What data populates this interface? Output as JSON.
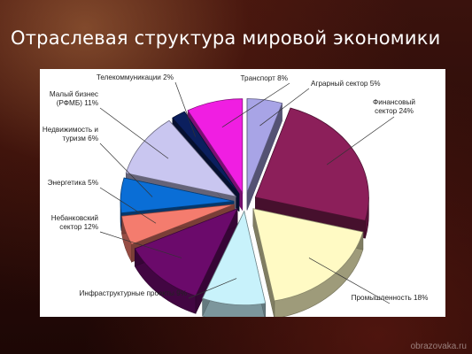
{
  "slide": {
    "title": "Отраслевая структура мировой экономики",
    "watermark": "obrazovaka.ru"
  },
  "chart_data": {
    "type": "pie",
    "title": "",
    "exploded": true,
    "three_d": true,
    "slices": [
      {
        "label": "Аграрный сектор 5%",
        "value": 5,
        "color": "#a8a4e6"
      },
      {
        "label": "Финансовый сектор 24%",
        "value": 24,
        "color": "#8c1f5a"
      },
      {
        "label": "Промышленность 18%",
        "value": 18,
        "color": "#fffac4"
      },
      {
        "label": "Инфраструктурные проекты 9%",
        "value": 9,
        "color": "#c8f2fb"
      },
      {
        "label": "Небанковский сектор 12%",
        "value": 12,
        "color": "#6b0a6b"
      },
      {
        "label": "Энергетика 5%",
        "value": 5,
        "color": "#f47c6e"
      },
      {
        "label": "Недвижимость и туризм 6%",
        "value": 6,
        "color": "#0a6ed6"
      },
      {
        "label": "Малый бизнес (РФМБ) 11%",
        "value": 11,
        "color": "#c9c6f0"
      },
      {
        "label": "Телекоммуникации 2%",
        "value": 2,
        "color": "#0b1f5e"
      },
      {
        "label": "Транспорт 8%",
        "value": 8,
        "color": "#f01ee2"
      }
    ]
  }
}
